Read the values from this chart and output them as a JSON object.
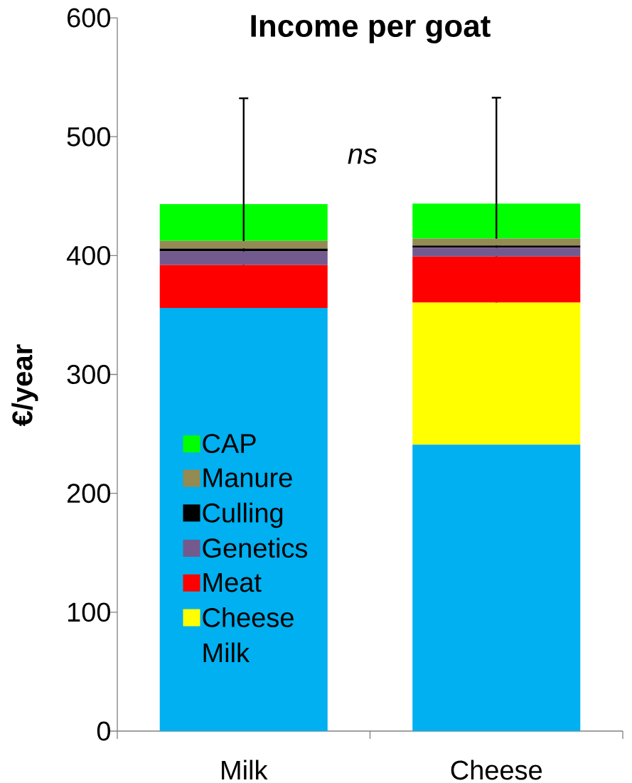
{
  "chart_data": {
    "type": "bar",
    "title": "Income per goat",
    "ylabel": "€/year",
    "categories": [
      "Milk",
      "Cheese"
    ],
    "stacked": true,
    "series": [
      {
        "name": "Milk",
        "color": "#00b0f0",
        "values": [
          356,
          241
        ]
      },
      {
        "name": "Cheese",
        "color": "#ffff00",
        "values": [
          0,
          119.5
        ]
      },
      {
        "name": "Meat",
        "color": "#ff0000",
        "values": [
          36,
          38.6
        ]
      },
      {
        "name": "Genetics",
        "color": "#735a8e",
        "values": [
          11.5,
          7.6
        ]
      },
      {
        "name": "Culling",
        "color": "#000000",
        "values": [
          2.4,
          1.8
        ]
      },
      {
        "name": "Manure",
        "color": "#948a54",
        "values": [
          6.4,
          5.8
        ]
      },
      {
        "name": "CAP",
        "color": "#00ff00",
        "values": [
          31,
          29.5
        ],
        "errors": [
          89,
          89
        ]
      }
    ],
    "ylim": [
      0,
      600
    ],
    "yticks": [
      0,
      100,
      200,
      300,
      400,
      500,
      600
    ],
    "legend": "bottom left",
    "annotations": [
      "ns"
    ]
  }
}
